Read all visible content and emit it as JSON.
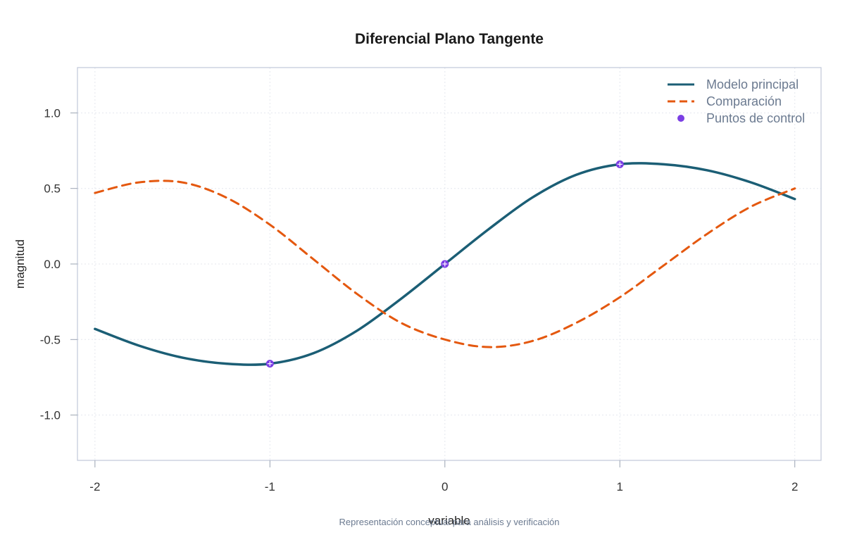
{
  "chart_data": {
    "type": "line",
    "title": "Diferencial Plano Tangente",
    "xlabel": "variable",
    "ylabel": "magnitud",
    "caption": "Representación conceptual para análisis y verificación",
    "xlim": [
      -2.1,
      2.15
    ],
    "ylim": [
      -1.3,
      1.3
    ],
    "x_ticks": [
      -2,
      -1,
      0,
      1,
      2
    ],
    "x_tick_labels": [
      "-2",
      "-1",
      "0",
      "1",
      "2"
    ],
    "y_ticks": [
      -1.0,
      -0.5,
      0.0,
      0.5,
      1.0
    ],
    "y_tick_labels": [
      "-1.0",
      "-0.5",
      "0.0",
      "0.5",
      "1.0"
    ],
    "grid": true,
    "legend_position": "top-right",
    "x": [
      -2.0,
      -1.75,
      -1.5,
      -1.25,
      -1.0,
      -0.75,
      -0.5,
      -0.25,
      0.0,
      0.25,
      0.5,
      0.75,
      1.0,
      1.25,
      1.5,
      1.75,
      2.0
    ],
    "series": [
      {
        "name": "Modelo principal",
        "style": "solid",
        "color": "#1b5e75",
        "values": [
          -0.43,
          -0.54,
          -0.62,
          -0.66,
          -0.66,
          -0.59,
          -0.44,
          -0.23,
          0.0,
          0.23,
          0.44,
          0.59,
          0.66,
          0.66,
          0.62,
          0.54,
          0.43
        ]
      },
      {
        "name": "Comparación",
        "style": "dashed",
        "color": "#e4580f",
        "values": [
          0.47,
          0.54,
          0.54,
          0.44,
          0.26,
          0.03,
          -0.2,
          -0.39,
          -0.5,
          -0.55,
          -0.51,
          -0.39,
          -0.22,
          -0.01,
          0.2,
          0.38,
          0.5
        ]
      }
    ],
    "points": {
      "name": "Puntos de control",
      "color": "#7b3fe4",
      "x": [
        -1,
        0,
        1
      ],
      "y": [
        -0.66,
        0.0,
        0.66
      ]
    }
  }
}
